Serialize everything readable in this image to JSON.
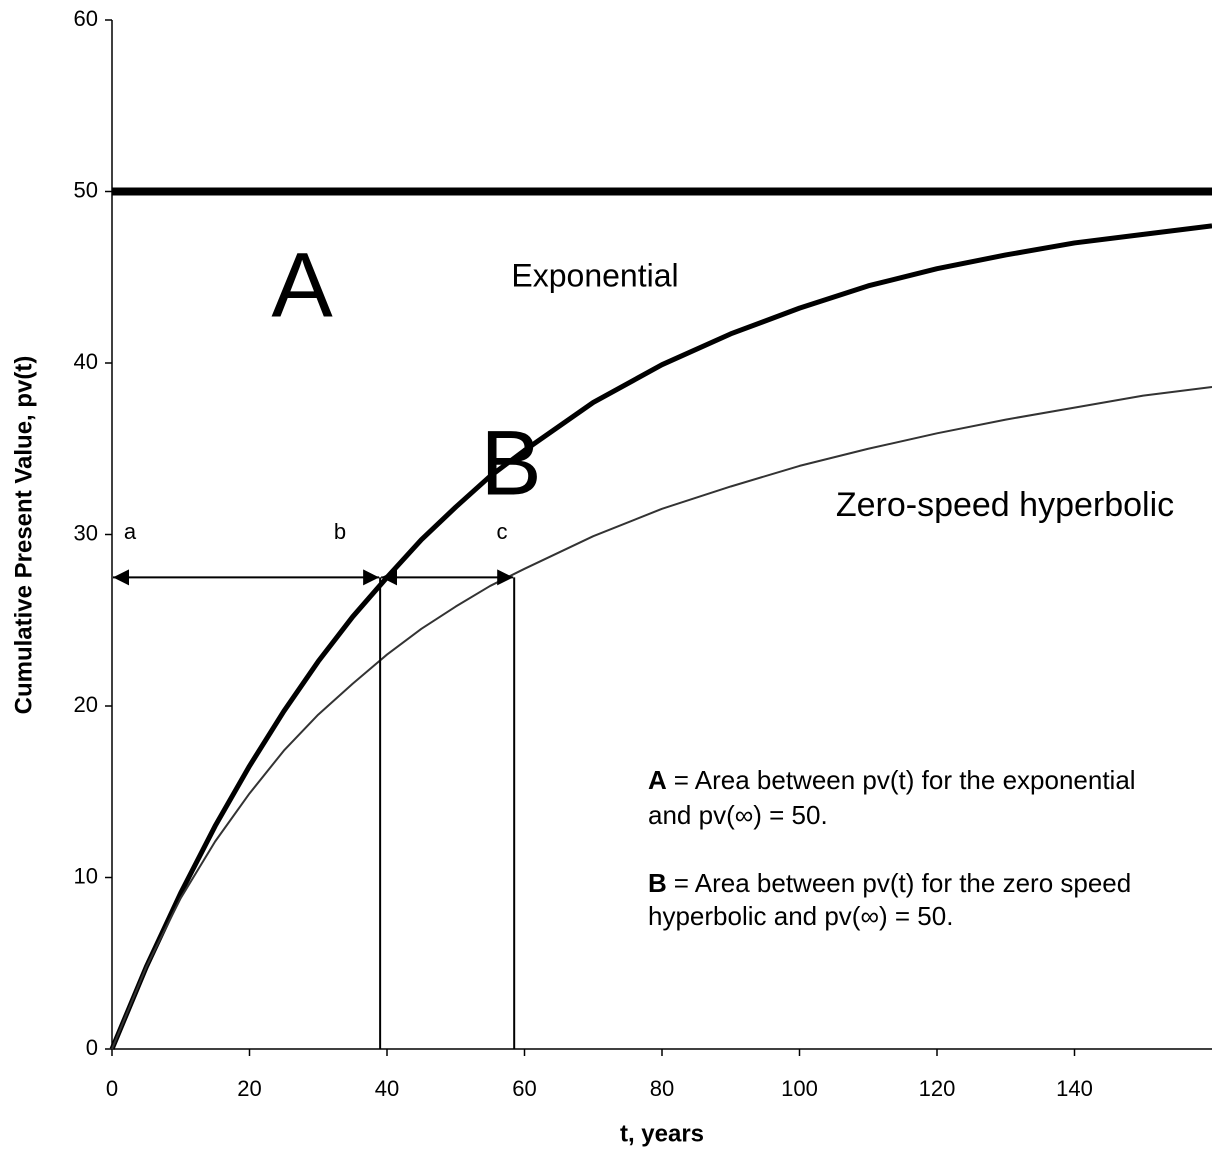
{
  "chart_data": {
    "type": "line",
    "x": [
      0,
      5,
      10,
      15,
      20,
      25,
      30,
      35,
      40,
      45,
      50,
      55,
      60,
      70,
      80,
      90,
      100,
      110,
      120,
      130,
      140,
      150,
      160
    ],
    "series": [
      {
        "color": "#000000",
        "width": 5,
        "values": [
          0,
          4.8,
          9.1,
          13.0,
          16.5,
          19.7,
          22.6,
          25.2,
          27.5,
          29.7,
          31.6,
          33.4,
          34.9,
          37.7,
          39.9,
          41.7,
          43.2,
          44.5,
          45.5,
          46.3,
          47.0,
          47.5,
          48.0
        ]
      },
      {
        "color": "#333333",
        "width": 2,
        "values": [
          0,
          4.8,
          8.8,
          12.1,
          14.9,
          17.4,
          19.5,
          21.3,
          23.0,
          24.5,
          25.8,
          27.0,
          28.0,
          29.9,
          31.5,
          32.8,
          34.0,
          35.0,
          35.9,
          36.7,
          37.4,
          38.1,
          38.6
        ]
      }
    ],
    "hline": 50,
    "markers": {
      "y": 27.5,
      "x": [
        0,
        39,
        58.5
      ],
      "labels": [
        "a",
        "b",
        "c"
      ]
    },
    "xlim": [
      0,
      160
    ],
    "xticks": [
      0,
      20,
      40,
      60,
      80,
      100,
      120,
      140
    ],
    "ylim": [
      0,
      60
    ],
    "yticks": [
      0,
      10,
      20,
      30,
      40,
      50,
      60
    ],
    "x_label": "t, years",
    "y_label": "Cumulative Present Value, pv(t)",
    "annotations": [
      "A",
      "Exponential",
      "B",
      "Zero-speed hyperbolic"
    ],
    "notes": [
      {
        "key": "A",
        "lines": [
          "= Area between pv(t) for the exponential",
          "and pv(∞) = 50."
        ]
      },
      {
        "key": "B",
        "lines": [
          "= Area between pv(t) for the zero speed",
          "hyperbolic and pv(∞) = 50."
        ]
      }
    ],
    "grid": false
  }
}
